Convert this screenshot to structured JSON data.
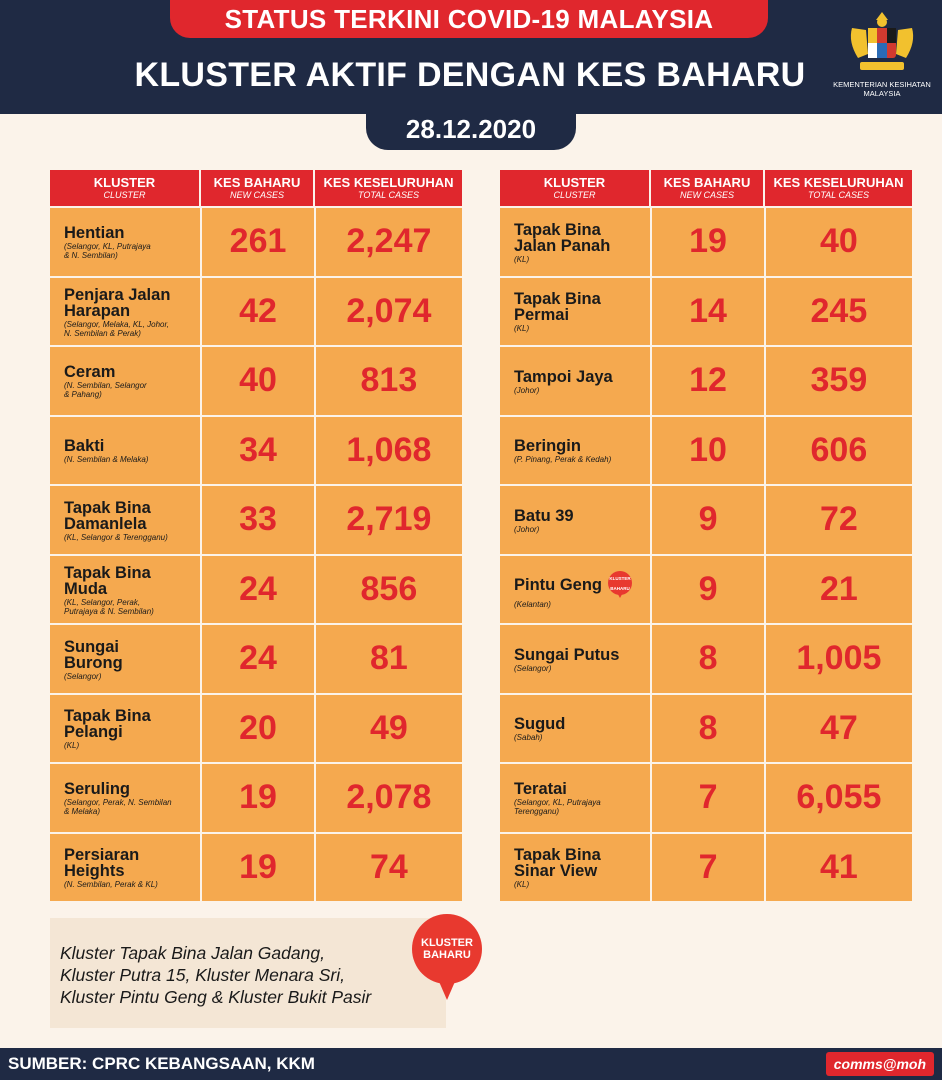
{
  "header": {
    "ribbon": "STATUS TERKINI COVID-19 MALAYSIA",
    "title": "KLUSTER AKTIF DENGAN KES BAHARU",
    "date": "28.12.2020",
    "ministry_line1": "KEMENTERIAN KESIHATAN",
    "ministry_line2": "MALAYSIA"
  },
  "columns": {
    "cluster": "KLUSTER",
    "cluster_sub": "CLUSTER",
    "new": "KES BAHARU",
    "new_sub": "NEW CASES",
    "total": "KES KESELURUHAN",
    "total_sub": "TOTAL CASES"
  },
  "left_table": [
    {
      "name": "Hentian",
      "loc": "(Selangor, KL, Putrajaya\n& N. Sembilan)",
      "new": "261",
      "total": "2,247"
    },
    {
      "name": "Penjara Jalan\nHarapan",
      "loc": "(Selangor, Melaka, KL, Johor,\nN. Sembilan & Perak)",
      "new": "42",
      "total": "2,074"
    },
    {
      "name": "Ceram",
      "loc": "(N. Sembilan, Selangor\n& Pahang)",
      "new": "40",
      "total": "813"
    },
    {
      "name": "Bakti",
      "loc": "(N. Sembilan & Melaka)",
      "new": "34",
      "total": "1,068"
    },
    {
      "name": "Tapak Bina\nDamanlela",
      "loc": "(KL, Selangor & Terengganu)",
      "new": "33",
      "total": "2,719"
    },
    {
      "name": "Tapak Bina\nMuda",
      "loc": "(KL, Selangor, Perak,\nPutrajaya & N. Sembilan)",
      "new": "24",
      "total": "856"
    },
    {
      "name": "Sungai\nBurong",
      "loc": "(Selangor)",
      "new": "24",
      "total": "81"
    },
    {
      "name": "Tapak Bina\nPelangi",
      "loc": "(KL)",
      "new": "20",
      "total": "49"
    },
    {
      "name": "Seruling",
      "loc": "(Selangor, Perak, N. Sembilan\n& Melaka)",
      "new": "19",
      "total": "2,078"
    },
    {
      "name": "Persiaran\nHeights",
      "loc": "(N. Sembilan, Perak & KL)",
      "new": "19",
      "total": "74"
    }
  ],
  "right_table": [
    {
      "name": "Tapak Bina\nJalan Panah",
      "loc": "(KL)",
      "new": "19",
      "total": "40"
    },
    {
      "name": "Tapak Bina\nPermai",
      "loc": "(KL)",
      "new": "14",
      "total": "245"
    },
    {
      "name": "Tampoi Jaya",
      "loc": "(Johor)",
      "new": "12",
      "total": "359"
    },
    {
      "name": "Beringin",
      "loc": "(P. Pinang, Perak & Kedah)",
      "new": "10",
      "total": "606"
    },
    {
      "name": "Batu 39",
      "loc": "(Johor)",
      "new": "9",
      "total": "72"
    },
    {
      "name": "Pintu Geng",
      "loc": "(Kelantan)",
      "new": "9",
      "total": "21",
      "badge": true
    },
    {
      "name": "Sungai Putus",
      "loc": "(Selangor)",
      "new": "8",
      "total": "1,005"
    },
    {
      "name": "Sugud",
      "loc": "(Sabah)",
      "new": "8",
      "total": "47"
    },
    {
      "name": "Teratai",
      "loc": "(Selangor, KL, Putrajaya\nTerengganu)",
      "new": "7",
      "total": "6,055"
    },
    {
      "name": "Tapak Bina\nSinar View",
      "loc": "(KL)",
      "new": "7",
      "total": "41"
    }
  ],
  "badge": {
    "line1": "KLUSTER",
    "line2": "BAHARU"
  },
  "note_lines": [
    "Kluster Tapak Bina Jalan Gadang,",
    "Kluster Putra 15, Kluster Menara Sri,",
    "Kluster Pintu Geng & Kluster Bukit Pasir"
  ],
  "footer": {
    "source": "SUMBER: CPRC KEBANGSAAN, KKM",
    "handle": "comms@moh"
  },
  "colors": {
    "navy": "#1f2a44",
    "red": "#e0272d",
    "orange": "#f5a94f",
    "background": "#fbf3ea"
  }
}
